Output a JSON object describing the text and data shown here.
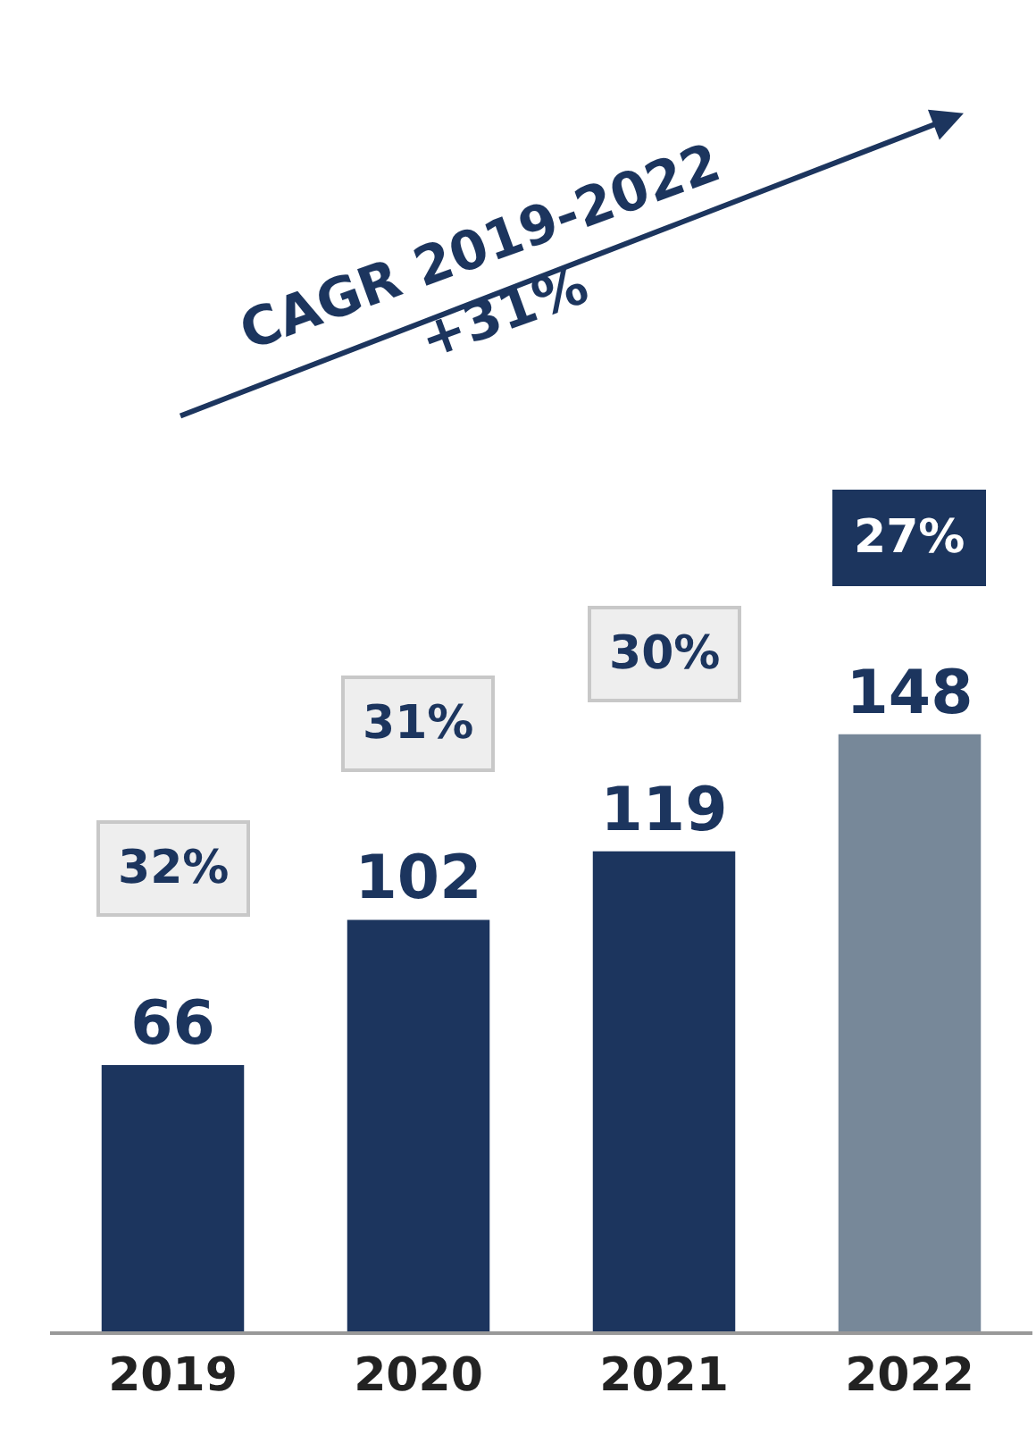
{
  "chart_data": {
    "type": "bar",
    "title": "CAGR 2019-2022\n+31%",
    "categories": [
      "2019",
      "2020",
      "2021",
      "2022"
    ],
    "values": [
      66,
      102,
      119,
      148
    ],
    "colors": [
      "#1c355e",
      "#1c355e",
      "#1c355e",
      "#778899"
    ],
    "data_labels": true,
    "ylim": [
      0,
      330
    ],
    "annotations": [
      "32%",
      "31%",
      "30%",
      "27%"
    ]
  }
}
